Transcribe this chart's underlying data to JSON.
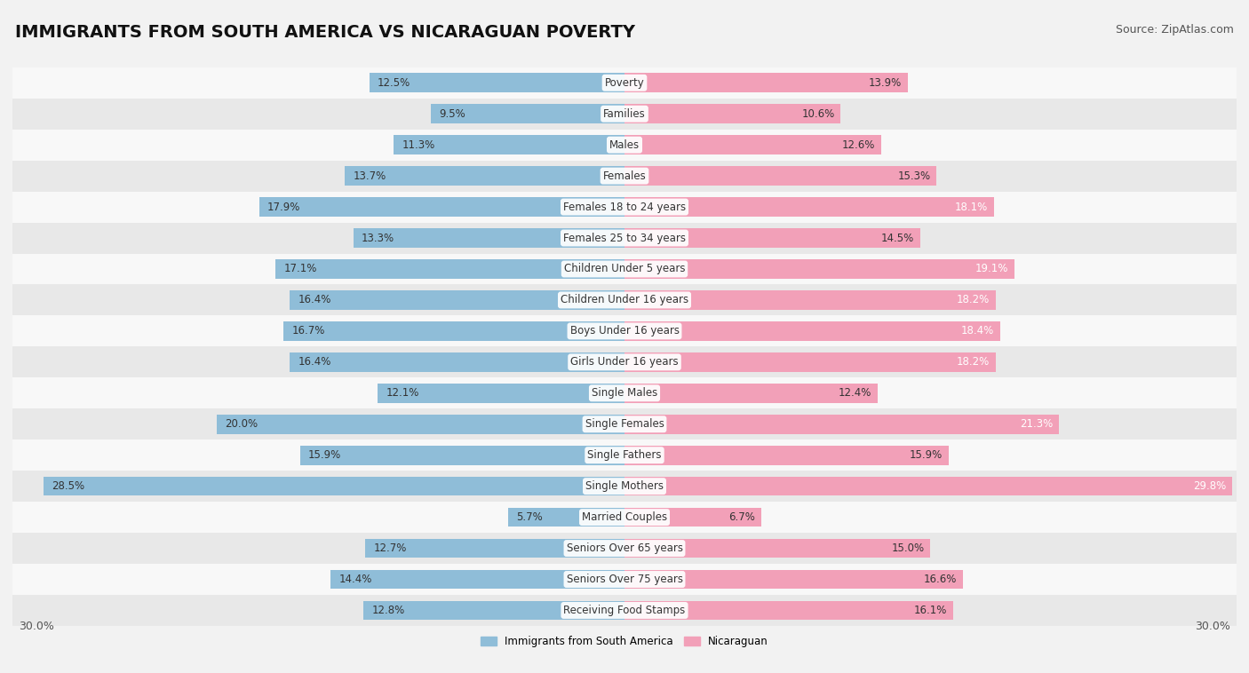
{
  "title": "IMMIGRANTS FROM SOUTH AMERICA VS NICARAGUAN POVERTY",
  "source": "Source: ZipAtlas.com",
  "categories": [
    "Poverty",
    "Families",
    "Males",
    "Females",
    "Females 18 to 24 years",
    "Females 25 to 34 years",
    "Children Under 5 years",
    "Children Under 16 years",
    "Boys Under 16 years",
    "Girls Under 16 years",
    "Single Males",
    "Single Females",
    "Single Fathers",
    "Single Mothers",
    "Married Couples",
    "Seniors Over 65 years",
    "Seniors Over 75 years",
    "Receiving Food Stamps"
  ],
  "left_values": [
    12.5,
    9.5,
    11.3,
    13.7,
    17.9,
    13.3,
    17.1,
    16.4,
    16.7,
    16.4,
    12.1,
    20.0,
    15.9,
    28.5,
    5.7,
    12.7,
    14.4,
    12.8
  ],
  "right_values": [
    13.9,
    10.6,
    12.6,
    15.3,
    18.1,
    14.5,
    19.1,
    18.2,
    18.4,
    18.2,
    12.4,
    21.3,
    15.9,
    29.8,
    6.7,
    15.0,
    16.6,
    16.1
  ],
  "left_color": "#8fbdd8",
  "right_color": "#f2a0b8",
  "left_label": "Immigrants from South America",
  "right_label": "Nicaraguan",
  "axis_max": 30.0,
  "background_color": "#f2f2f2",
  "row_bg_even": "#f8f8f8",
  "row_bg_odd": "#e8e8e8",
  "title_fontsize": 14,
  "source_fontsize": 9,
  "cat_fontsize": 8.5,
  "value_fontsize": 8.5,
  "axis_label_fontsize": 9
}
